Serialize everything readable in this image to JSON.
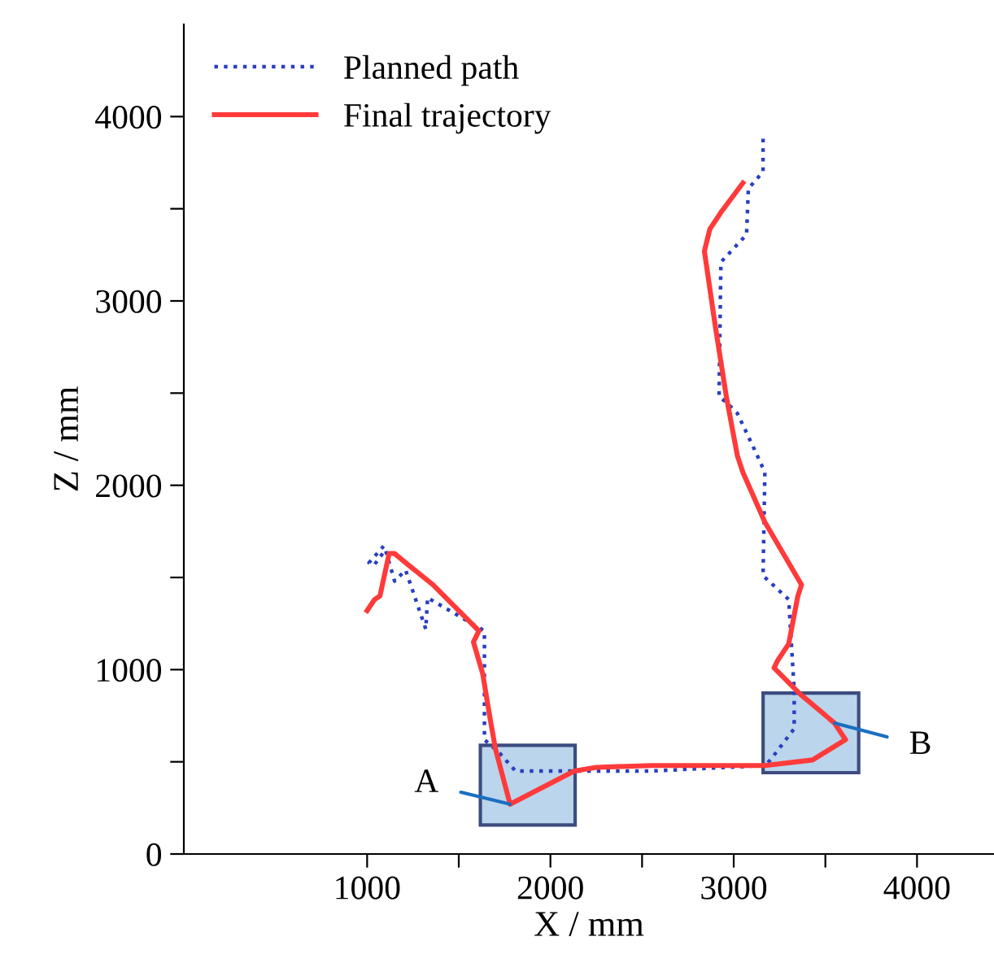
{
  "chart_data": {
    "type": "line",
    "xlabel": "X / mm",
    "ylabel": "Z / mm",
    "xlim": [
      0,
      4420
    ],
    "ylim": [
      0,
      4500
    ],
    "xticks": [
      {
        "value": 1000,
        "label": "1000"
      },
      {
        "value": 1500,
        "label": null
      },
      {
        "value": 2000,
        "label": "2000"
      },
      {
        "value": 2500,
        "label": null
      },
      {
        "value": 3000,
        "label": "3000"
      },
      {
        "value": 3500,
        "label": null
      },
      {
        "value": 4000,
        "label": "4000"
      }
    ],
    "yticks": [
      0,
      {
        "value": 500,
        "label": null
      },
      1000,
      {
        "value": 1500,
        "label": null
      },
      2000,
      {
        "value": 2500,
        "label": null
      },
      3000,
      {
        "value": 3500,
        "label": null
      },
      4000
    ],
    "legend": "top left",
    "grid": false,
    "series": [
      {
        "name": "Planned path",
        "color": "#2a3fc0",
        "line_style": "dotted",
        "x": [
          3160,
          3160,
          3080,
          3070,
          2930,
          2920,
          2960,
          3020,
          3120,
          3170,
          3160,
          3300,
          3330,
          3330,
          3200,
          3170,
          2550,
          2130,
          1810,
          1720,
          1640,
          1640,
          1330,
          1320,
          1210,
          1150,
          1100,
          1040,
          1010,
          1090
        ],
        "values": [
          3880,
          3700,
          3610,
          3360,
          3210,
          2480,
          2450,
          2390,
          2180,
          2070,
          1510,
          1380,
          890,
          680,
          510,
          480,
          450,
          450,
          450,
          550,
          620,
          1210,
          1390,
          1220,
          1540,
          1480,
          1650,
          1570,
          1580,
          1670
        ]
      },
      {
        "name": "Final trajectory",
        "color": "#ff3a3a",
        "line_style": "solid",
        "x": [
          1000,
          1040,
          1070,
          1120,
          1150,
          1210,
          1360,
          1610,
          1580,
          1630,
          1670,
          1700,
          1780,
          2130,
          2250,
          2550,
          3170,
          3430,
          3610,
          3550,
          3360,
          3220,
          3240,
          3300,
          3350,
          3370,
          3170,
          3050,
          3020,
          2960,
          2900,
          2840,
          2870,
          2930,
          3050
        ],
        "values": [
          1320,
          1380,
          1400,
          1630,
          1630,
          1580,
          1460,
          1210,
          1150,
          980,
          740,
          570,
          270,
          450,
          470,
          480,
          480,
          510,
          620,
          710,
          870,
          1010,
          1050,
          1140,
          1400,
          1460,
          1800,
          2070,
          2160,
          2480,
          2860,
          3270,
          3390,
          3480,
          3640
        ]
      }
    ],
    "annotations": [
      {
        "text": "A",
        "x": 1780,
        "y": 270
      },
      {
        "text": "B",
        "x": 3550,
        "y": 710
      }
    ]
  }
}
